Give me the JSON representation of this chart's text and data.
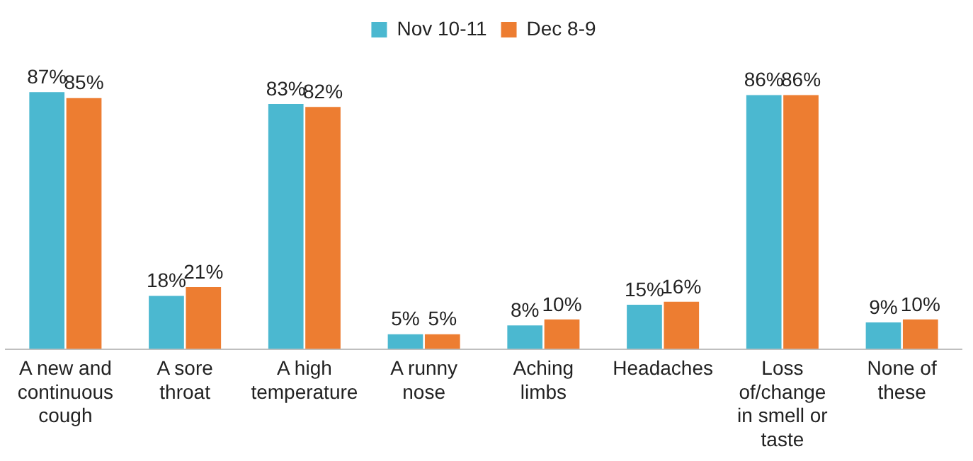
{
  "chart_data": {
    "type": "bar",
    "categories": [
      "A new and continuous cough",
      "A sore throat",
      "A high temperature",
      "A runny nose",
      "Aching limbs",
      "Headaches",
      "Loss of/change in smell or taste",
      "None of these"
    ],
    "series": [
      {
        "name": "Nov 10-11",
        "color": "#4bb8d0",
        "values": [
          87,
          18,
          83,
          5,
          8,
          15,
          86,
          9
        ],
        "value_labels": [
          "87%",
          "18%",
          "83%",
          "5%",
          "8%",
          "15%",
          "86%",
          "9%"
        ]
      },
      {
        "name": "Dec 8-9",
        "color": "#ed7d31",
        "values": [
          85,
          21,
          82,
          5,
          10,
          16,
          86,
          10
        ],
        "value_labels": [
          "85%",
          "21%",
          "82%",
          "5%",
          "10%",
          "16%",
          "86%",
          "10%"
        ]
      }
    ],
    "legend": "top",
    "grid": false
  }
}
